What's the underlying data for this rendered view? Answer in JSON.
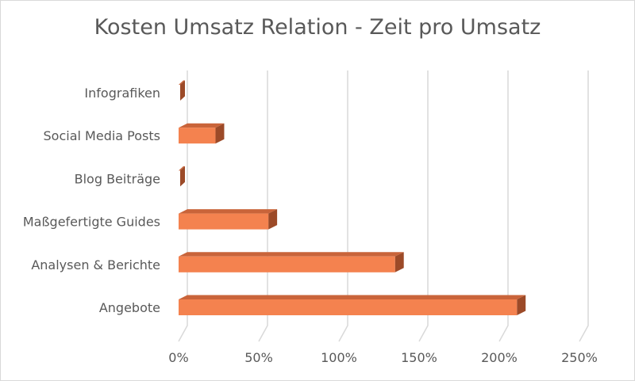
{
  "chart_data": {
    "type": "bar",
    "orientation": "horizontal",
    "style": "3d",
    "title": "Kosten Umsatz Relation - Zeit pro Umsatz",
    "xlabel": "",
    "ylabel": "",
    "categories": [
      "Infografiken",
      "Social Media Posts",
      "Blog Beiträge",
      "Maßgefertigte Guides",
      "Analysen & Berichte",
      "Angebote"
    ],
    "values": [
      0,
      23,
      0,
      56,
      135,
      211
    ],
    "value_unit": "%",
    "xlim": [
      0,
      250
    ],
    "x_ticks": [
      0,
      50,
      100,
      150,
      200,
      250
    ],
    "x_tick_labels": [
      "0%",
      "50%",
      "100%",
      "150%",
      "200%",
      "250%"
    ],
    "grid": true,
    "legend": "none",
    "colors": {
      "bar_front": "#f4824f",
      "bar_top": "#c9643a",
      "bar_side": "#9c4a28",
      "gridline": "#d9d9d9",
      "text": "#595959"
    }
  }
}
